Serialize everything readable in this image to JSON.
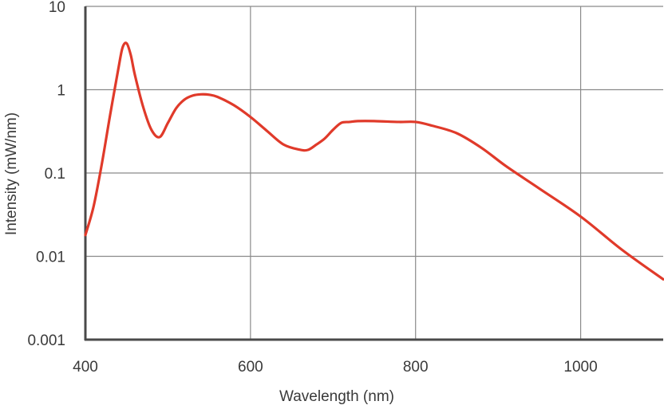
{
  "chart_data": {
    "type": "line",
    "title": "",
    "xlabel": "Wavelength (nm)",
    "ylabel": "Intensity (mW/nm)",
    "xlim": [
      400,
      1100
    ],
    "ylim": [
      0.001,
      10
    ],
    "yscale": "log",
    "grid": true,
    "line_color": "#e03a2a",
    "x_ticks": [
      400,
      600,
      800,
      1000
    ],
    "x_tick_labels": [
      "400",
      "600",
      "800",
      "1000"
    ],
    "y_ticks": [
      0.001,
      0.01,
      0.1,
      1,
      10
    ],
    "y_tick_labels": [
      "0.001",
      "0.01",
      "0.1",
      "1",
      "10"
    ],
    "series": [
      {
        "x": [
          400,
          410,
          420,
          430,
          440,
          445,
          450,
          455,
          460,
          470,
          480,
          490,
          500,
          510,
          520,
          530,
          540,
          550,
          560,
          580,
          600,
          620,
          640,
          660,
          670,
          680,
          690,
          700,
          710,
          720,
          730,
          750,
          780,
          800,
          820,
          850,
          880,
          910,
          950,
          1000,
          1050,
          1100
        ],
        "y": [
          0.018,
          0.04,
          0.13,
          0.5,
          1.8,
          3.2,
          3.6,
          2.6,
          1.5,
          0.62,
          0.33,
          0.27,
          0.4,
          0.6,
          0.76,
          0.85,
          0.88,
          0.87,
          0.82,
          0.65,
          0.47,
          0.32,
          0.22,
          0.19,
          0.19,
          0.22,
          0.26,
          0.33,
          0.4,
          0.41,
          0.42,
          0.42,
          0.41,
          0.41,
          0.37,
          0.3,
          0.2,
          0.12,
          0.065,
          0.03,
          0.012,
          0.0053
        ]
      }
    ]
  }
}
